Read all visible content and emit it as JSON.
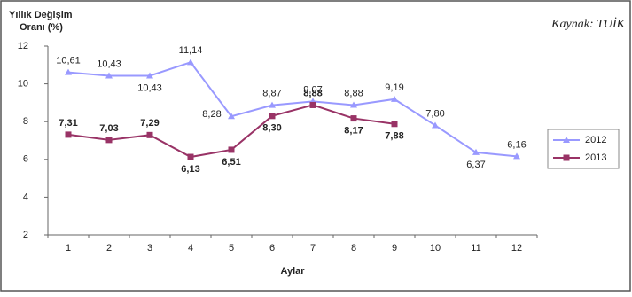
{
  "chart_data": {
    "type": "line",
    "ylabel": [
      "Yıllık Değişim",
      "Oranı (%)"
    ],
    "xlabel": "Aylar",
    "source": "Kaynak: TUİK",
    "categories": [
      "1",
      "2",
      "3",
      "4",
      "5",
      "6",
      "7",
      "8",
      "9",
      "10",
      "11",
      "12"
    ],
    "series": [
      {
        "name": "2012",
        "color": "#9999ff",
        "values": [
          10.61,
          10.43,
          10.43,
          11.14,
          8.28,
          8.87,
          9.07,
          8.88,
          9.19,
          7.8,
          6.37,
          6.16
        ],
        "value_labels": [
          "10,61",
          "10,43",
          "10,43",
          "11,14",
          "8,28",
          "8,87",
          "9,07",
          "8,88",
          "9,19",
          "7,80",
          "6,37",
          "6,16"
        ]
      },
      {
        "name": "2013",
        "color": "#993366",
        "values": [
          7.31,
          7.03,
          7.29,
          6.13,
          6.51,
          8.3,
          8.88,
          8.17,
          7.88,
          null,
          null,
          null
        ],
        "value_labels": [
          "7,31",
          "7,03",
          "7,29",
          "6,13",
          "6,51",
          "8,30",
          "8,88",
          "8,17",
          "7,88",
          null,
          null,
          null
        ]
      }
    ],
    "ylim": [
      2,
      12
    ],
    "yticks": [
      2,
      4,
      6,
      8,
      10,
      12
    ],
    "legend": "right"
  }
}
